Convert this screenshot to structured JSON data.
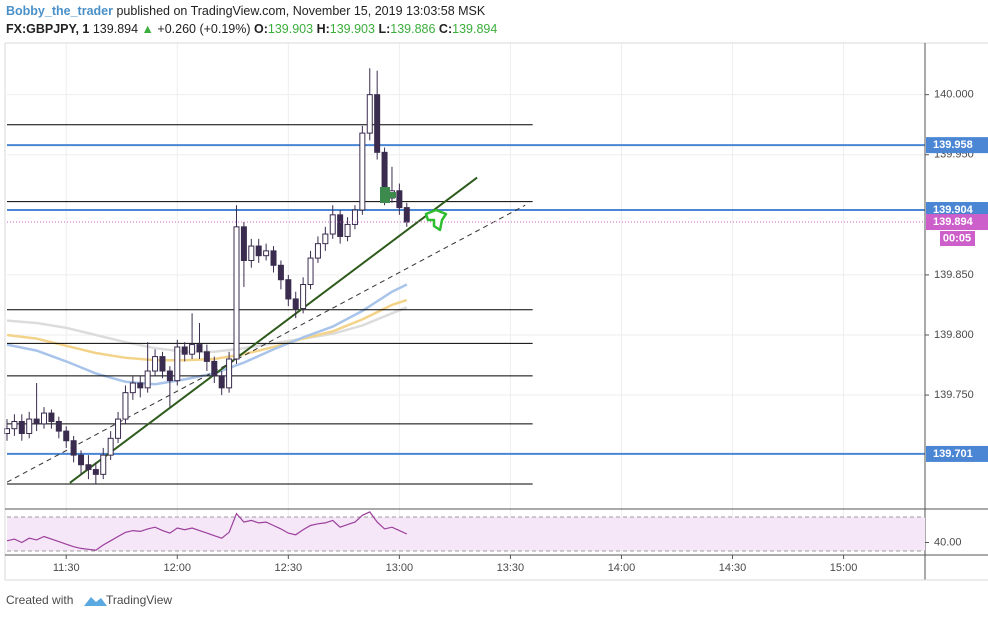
{
  "header": {
    "author": "Bobby_the_trader",
    "published": " published on TradingView.com, November 15, 2019 13:03:58 MSK",
    "symbol": "FX:GBPJPY, 1",
    "price": "139.894",
    "arrow": "▲",
    "change": "+0.260 (+0.19%)",
    "o_label": "O:",
    "o": "139.903",
    "h_label": "H:",
    "h": "139.903",
    "l_label": "L:",
    "l": "139.886",
    "c_label": "C:",
    "c": "139.894"
  },
  "footer": {
    "created": "Created with",
    "brand": "TradingView"
  },
  "chart_data": {
    "type": "candlestick",
    "up_color": "#ffffff",
    "down_color": "#3a2c4f",
    "outline": "#3a2c4f",
    "x": [
      "11:14",
      "11:16",
      "11:18",
      "11:20",
      "11:22",
      "11:24",
      "11:26",
      "11:28",
      "11:30",
      "11:32",
      "11:34",
      "11:36",
      "11:38",
      "11:40",
      "11:42",
      "11:44",
      "11:46",
      "11:48",
      "11:50",
      "11:52",
      "11:54",
      "11:56",
      "11:58",
      "12:00",
      "12:02",
      "12:04",
      "12:06",
      "12:08",
      "12:10",
      "12:12",
      "12:14",
      "12:16",
      "12:18",
      "12:20",
      "12:22",
      "12:24",
      "12:26",
      "12:28",
      "12:30",
      "12:32",
      "12:34",
      "12:36",
      "12:38",
      "12:40",
      "12:42",
      "12:44",
      "12:46",
      "12:48",
      "12:50",
      "12:52",
      "12:54",
      "12:56",
      "12:58",
      "13:00",
      "13:02"
    ],
    "open": [
      139.718,
      139.722,
      139.728,
      139.718,
      139.73,
      139.726,
      139.735,
      139.728,
      139.72,
      139.712,
      139.7,
      139.692,
      139.688,
      139.684,
      139.7,
      139.714,
      139.73,
      139.752,
      139.76,
      139.756,
      139.77,
      139.782,
      139.77,
      139.762,
      139.79,
      139.784,
      139.792,
      139.786,
      139.778,
      139.766,
      139.756,
      139.78,
      139.89,
      139.862,
      139.874,
      139.866,
      139.87,
      139.858,
      139.846,
      139.83,
      139.822,
      139.842,
      139.864,
      139.876,
      139.884,
      139.9,
      139.882,
      139.892,
      139.904,
      139.968,
      140.0,
      139.952,
      139.914,
      139.92,
      139.906
    ],
    "high": [
      139.73,
      139.734,
      139.734,
      139.736,
      139.76,
      139.74,
      139.738,
      139.732,
      139.724,
      139.716,
      139.704,
      139.7,
      139.694,
      139.706,
      139.72,
      139.736,
      139.758,
      139.766,
      139.766,
      139.794,
      139.788,
      139.786,
      139.774,
      139.796,
      139.794,
      139.818,
      139.81,
      139.792,
      139.782,
      139.77,
      139.786,
      139.908,
      139.894,
      139.88,
      139.88,
      139.876,
      139.874,
      139.862,
      139.85,
      139.836,
      139.848,
      139.87,
      139.882,
      139.89,
      139.908,
      139.904,
      139.898,
      139.908,
      139.974,
      140.022,
      140.02,
      139.956,
      139.94,
      139.926,
      139.91
    ],
    "low": [
      139.712,
      139.716,
      139.712,
      139.714,
      139.72,
      139.722,
      139.722,
      139.714,
      139.706,
      139.694,
      139.684,
      139.68,
      139.676,
      139.68,
      139.696,
      139.71,
      139.726,
      139.746,
      139.748,
      139.752,
      139.766,
      139.764,
      139.74,
      139.758,
      139.778,
      139.78,
      139.78,
      139.77,
      139.76,
      139.75,
      139.752,
      139.776,
      139.84,
      139.856,
      139.86,
      139.862,
      139.852,
      139.838,
      139.824,
      139.814,
      139.818,
      139.838,
      139.86,
      139.87,
      139.88,
      139.876,
      139.878,
      139.888,
      139.9,
      139.962,
      139.946,
      139.908,
      139.91,
      139.9,
      139.89
    ],
    "close": [
      139.722,
      139.728,
      139.718,
      139.73,
      139.726,
      139.735,
      139.728,
      139.72,
      139.712,
      139.7,
      139.692,
      139.688,
      139.684,
      139.7,
      139.714,
      139.73,
      139.752,
      139.76,
      139.756,
      139.77,
      139.782,
      139.77,
      139.762,
      139.79,
      139.784,
      139.792,
      139.786,
      139.778,
      139.766,
      139.756,
      139.78,
      139.89,
      139.862,
      139.874,
      139.866,
      139.87,
      139.858,
      139.846,
      139.83,
      139.822,
      139.842,
      139.864,
      139.876,
      139.884,
      139.9,
      139.882,
      139.892,
      139.904,
      139.968,
      140.0,
      139.952,
      139.914,
      139.92,
      139.906,
      139.894
    ],
    "xlim": [
      "11:14",
      "15:22"
    ],
    "xticks": [
      "11:30",
      "12:00",
      "12:30",
      "13:00",
      "13:30",
      "14:00",
      "14:30",
      "15:00"
    ],
    "ylim": [
      139.656,
      140.043
    ],
    "yticks": [
      {
        "value": 140.0,
        "label": "140.000"
      },
      {
        "value": 139.95,
        "label": "139.950"
      },
      {
        "value": 139.85,
        "label": "139.850"
      },
      {
        "value": 139.8,
        "label": "139.800"
      },
      {
        "value": 139.75,
        "label": "139.750"
      }
    ],
    "grid": true,
    "ma_lines": [
      {
        "color": "#dcdcdc",
        "x": [
          "11:14",
          "11:22",
          "11:30",
          "11:38",
          "11:46",
          "11:54",
          "12:02",
          "12:10",
          "12:18",
          "12:26",
          "12:34",
          "12:42",
          "12:50",
          "12:58",
          "13:02"
        ],
        "values": [
          139.812,
          139.81,
          139.806,
          139.8,
          139.794,
          139.789,
          139.786,
          139.786,
          139.789,
          139.793,
          139.797,
          139.801,
          139.808,
          139.818,
          139.823
        ]
      },
      {
        "color": "#f3d38a",
        "x": [
          "11:14",
          "11:22",
          "11:30",
          "11:38",
          "11:46",
          "11:54",
          "12:02",
          "12:10",
          "12:18",
          "12:26",
          "12:34",
          "12:42",
          "12:50",
          "12:58",
          "13:02"
        ],
        "values": [
          139.8,
          139.797,
          139.791,
          139.785,
          139.781,
          139.779,
          139.779,
          139.78,
          139.784,
          139.79,
          139.797,
          139.803,
          139.813,
          139.825,
          139.829
        ]
      },
      {
        "color": "#a9c4ea",
        "x": [
          "11:14",
          "11:22",
          "11:30",
          "11:38",
          "11:46",
          "11:54",
          "12:02",
          "12:10",
          "12:18",
          "12:26",
          "12:34",
          "12:42",
          "12:50",
          "12:58",
          "13:02"
        ],
        "values": [
          139.792,
          139.787,
          139.778,
          139.768,
          139.761,
          139.759,
          139.763,
          139.768,
          139.777,
          139.788,
          139.798,
          139.807,
          139.82,
          139.836,
          139.842
        ]
      }
    ],
    "trend_lines": [
      {
        "color": "#2e5a1c",
        "dashed": false,
        "x": [
          "11:31",
          "13:21"
        ],
        "values": [
          139.677,
          139.931
        ]
      },
      {
        "color": "#333333",
        "dashed": true,
        "x": [
          "11:14",
          "13:34"
        ],
        "values": [
          139.6775,
          139.908
        ]
      }
    ],
    "levels": [
      {
        "value": 139.975,
        "color": "#000000",
        "until": "13:36"
      },
      {
        "value": 139.911,
        "color": "#000000",
        "until": "13:36"
      },
      {
        "value": 139.821,
        "color": "#000000",
        "until": "13:36"
      },
      {
        "value": 139.793,
        "color": "#000000",
        "until": "13:36"
      },
      {
        "value": 139.766,
        "color": "#000000",
        "until": "13:36"
      },
      {
        "value": 139.726,
        "color": "#000000",
        "until": "13:36"
      },
      {
        "value": 139.676,
        "color": "#000000",
        "until": "13:36"
      },
      {
        "value": 139.958,
        "color": "#4a86d4",
        "axis_label": true
      },
      {
        "value": 139.904,
        "color": "#4a86d4",
        "axis_label": true
      },
      {
        "value": 139.701,
        "color": "#4a86d4",
        "axis_label": true
      }
    ],
    "last_price": {
      "value": 139.894,
      "color": "#cc5fc9",
      "countdown": "00:05"
    },
    "rsi": {
      "color": "#9c3f9c",
      "values": [
        42,
        44,
        40,
        45,
        43,
        47,
        44,
        41,
        38,
        35,
        33,
        32,
        31,
        37,
        42,
        47,
        52,
        54,
        53,
        56,
        58,
        54,
        51,
        57,
        55,
        57,
        54,
        51,
        48,
        45,
        52,
        74,
        64,
        66,
        63,
        64,
        60,
        56,
        51,
        49,
        55,
        60,
        62,
        63,
        66,
        58,
        61,
        64,
        72,
        76,
        64,
        56,
        58,
        54,
        50
      ],
      "ylim": [
        25.3,
        78.2
      ],
      "yticks": [
        {
          "value": 40,
          "label": "40.00"
        }
      ],
      "bands": [
        30,
        70
      ]
    }
  }
}
